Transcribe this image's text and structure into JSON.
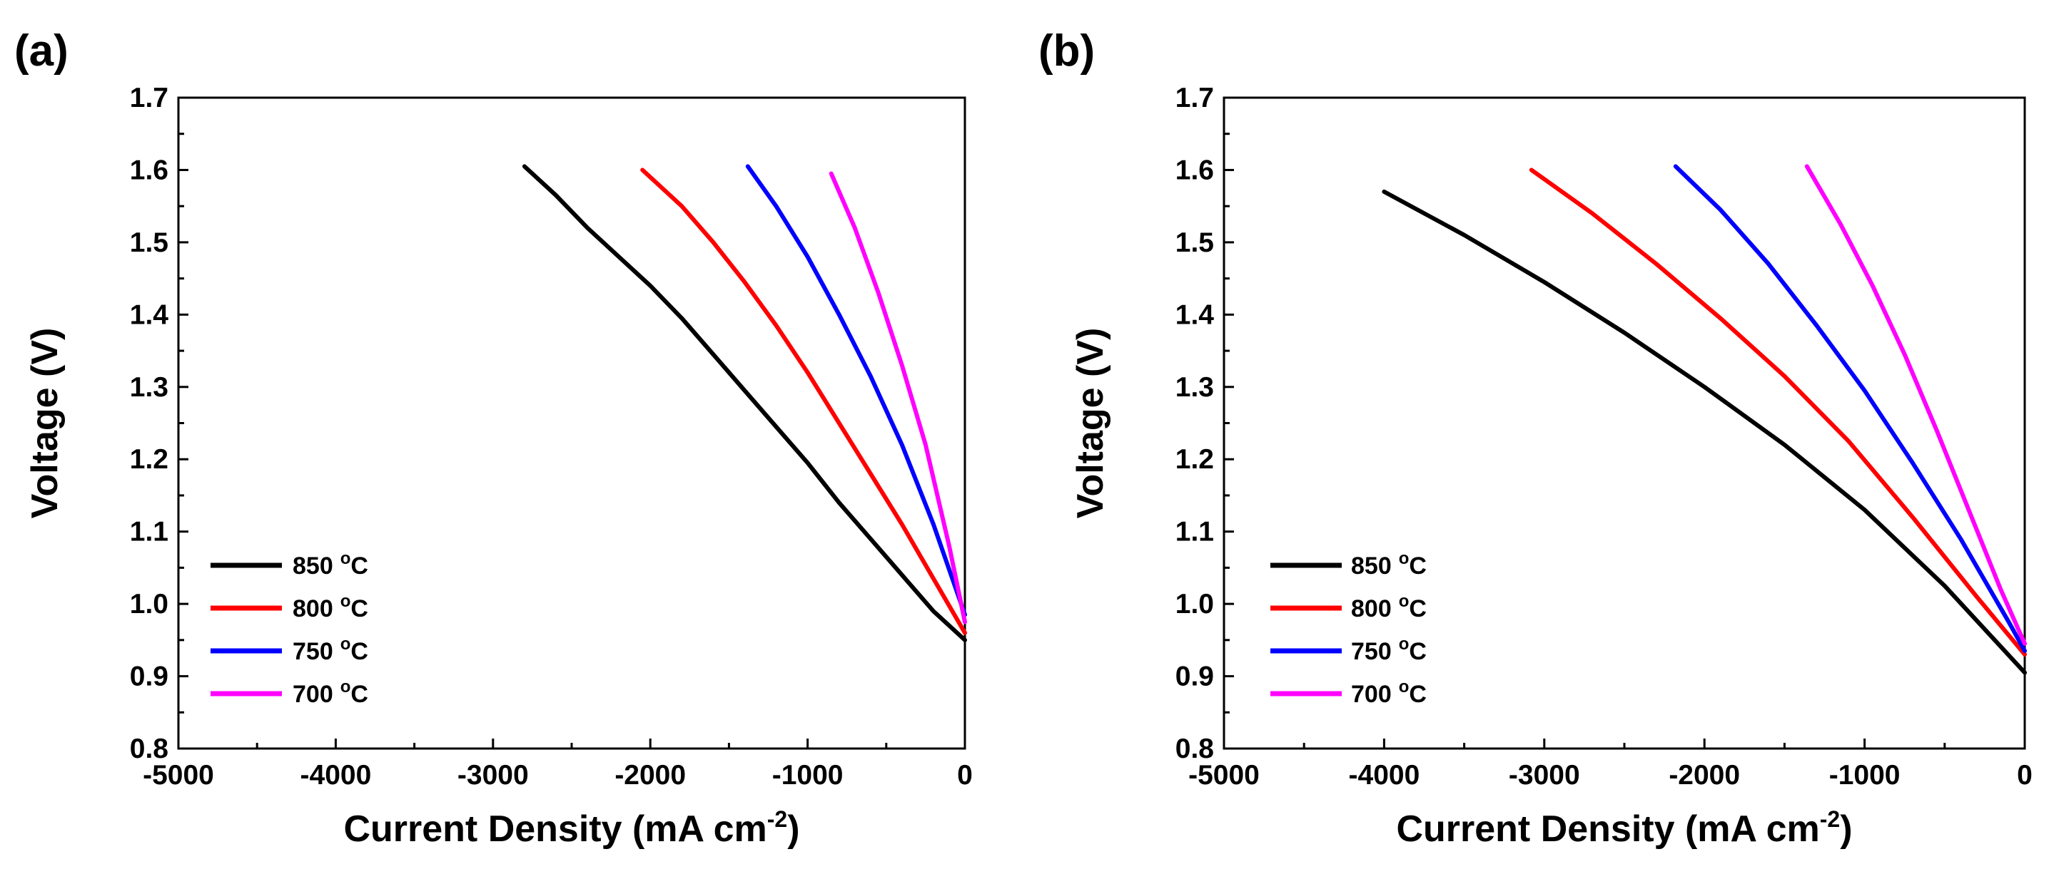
{
  "chart_data": [
    {
      "type": "line",
      "panel_label": "(a)",
      "xlabel": "Current Density (mA cm",
      "xlabel_sup": "-2",
      "xlabel_close": ")",
      "ylabel": "Voltage (V)",
      "xlim": [
        -5000,
        0
      ],
      "ylim": [
        0.8,
        1.7
      ],
      "x_ticks": [
        -5000,
        -4000,
        -3000,
        -2000,
        -1000,
        0
      ],
      "y_ticks": [
        0.8,
        0.9,
        1.0,
        1.1,
        1.2,
        1.3,
        1.4,
        1.5,
        1.6,
        1.7
      ],
      "x_tick_labels": [
        "-5000",
        "-4000",
        "-3000",
        "-2000",
        "-1000",
        "0"
      ],
      "y_tick_labels": [
        "0.8",
        "0.9",
        "1.0",
        "1.1",
        "1.2",
        "1.3",
        "1.4",
        "1.5",
        "1.6",
        "1.7"
      ],
      "legend_position": "bottom-left",
      "series": [
        {
          "name": "850 °C",
          "temp": "850",
          "color": "#000000",
          "x": [
            -2800,
            -2600,
            -2400,
            -2200,
            -2000,
            -1800,
            -1600,
            -1400,
            -1200,
            -1000,
            -800,
            -600,
            -400,
            -200,
            0
          ],
          "y": [
            1.605,
            1.565,
            1.52,
            1.48,
            1.44,
            1.395,
            1.345,
            1.295,
            1.245,
            1.195,
            1.14,
            1.09,
            1.04,
            0.99,
            0.95
          ]
        },
        {
          "name": "800 °C",
          "temp": "800",
          "color": "#ff0000",
          "x": [
            -2050,
            -1800,
            -1600,
            -1400,
            -1200,
            -1000,
            -800,
            -600,
            -400,
            -200,
            0
          ],
          "y": [
            1.6,
            1.55,
            1.5,
            1.445,
            1.385,
            1.32,
            1.25,
            1.18,
            1.11,
            1.035,
            0.96
          ]
        },
        {
          "name": "750 °C",
          "temp": "750",
          "color": "#0000ff",
          "x": [
            -1380,
            -1200,
            -1000,
            -800,
            -600,
            -400,
            -200,
            0
          ],
          "y": [
            1.605,
            1.55,
            1.48,
            1.4,
            1.315,
            1.22,
            1.11,
            0.985
          ]
        },
        {
          "name": "700 °C",
          "temp": "700",
          "color": "#ff00ff",
          "x": [
            -850,
            -700,
            -550,
            -400,
            -250,
            -100,
            0
          ],
          "y": [
            1.595,
            1.52,
            1.43,
            1.33,
            1.22,
            1.08,
            0.975
          ]
        }
      ]
    },
    {
      "type": "line",
      "panel_label": "(b)",
      "xlabel": "Current Density (mA cm",
      "xlabel_sup": "-2",
      "xlabel_close": ")",
      "ylabel": "Voltage (V)",
      "xlim": [
        -5000,
        0
      ],
      "ylim": [
        0.8,
        1.7
      ],
      "x_ticks": [
        -5000,
        -4000,
        -3000,
        -2000,
        -1000,
        0
      ],
      "y_ticks": [
        0.8,
        0.9,
        1.0,
        1.1,
        1.2,
        1.3,
        1.4,
        1.5,
        1.6,
        1.7
      ],
      "x_tick_labels": [
        "-5000",
        "-4000",
        "-3000",
        "-2000",
        "-1000",
        "0"
      ],
      "y_tick_labels": [
        "0.8",
        "0.9",
        "1.0",
        "1.1",
        "1.2",
        "1.3",
        "1.4",
        "1.5",
        "1.6",
        "1.7"
      ],
      "legend_position": "bottom-left",
      "series": [
        {
          "name": "850 °C",
          "temp": "850",
          "color": "#000000",
          "x": [
            -4000,
            -3500,
            -3000,
            -2500,
            -2000,
            -1500,
            -1000,
            -500,
            0
          ],
          "y": [
            1.57,
            1.51,
            1.445,
            1.375,
            1.3,
            1.22,
            1.13,
            1.025,
            0.905
          ]
        },
        {
          "name": "800 °C",
          "temp": "800",
          "color": "#ff0000",
          "x": [
            -3080,
            -2700,
            -2300,
            -1900,
            -1500,
            -1100,
            -700,
            -300,
            0
          ],
          "y": [
            1.6,
            1.54,
            1.47,
            1.395,
            1.315,
            1.225,
            1.12,
            1.01,
            0.93
          ]
        },
        {
          "name": "750 °C",
          "temp": "750",
          "color": "#0000ff",
          "x": [
            -2180,
            -1900,
            -1600,
            -1300,
            -1000,
            -700,
            -400,
            -100,
            0
          ],
          "y": [
            1.605,
            1.545,
            1.47,
            1.385,
            1.295,
            1.195,
            1.09,
            0.975,
            0.935
          ]
        },
        {
          "name": "700 °C",
          "temp": "700",
          "color": "#ff00ff",
          "x": [
            -1360,
            -1150,
            -950,
            -750,
            -550,
            -350,
            -150,
            0
          ],
          "y": [
            1.605,
            1.525,
            1.44,
            1.345,
            1.24,
            1.13,
            1.02,
            0.945
          ]
        }
      ]
    }
  ]
}
